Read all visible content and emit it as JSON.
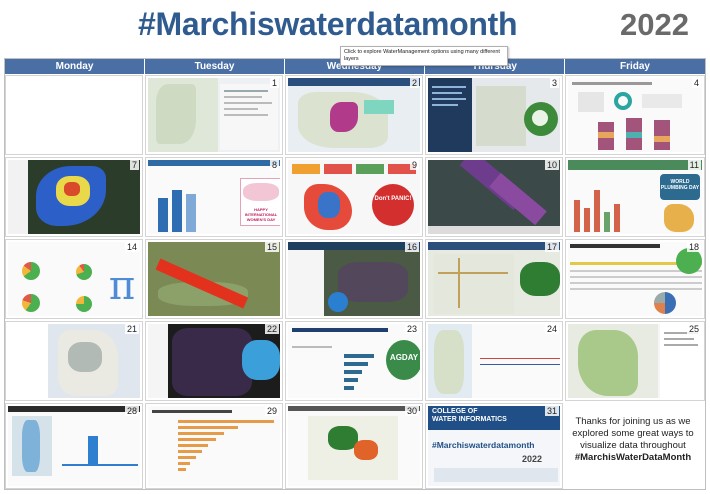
{
  "header": {
    "title": "#Marchiswaterdatamonth",
    "year": "2022"
  },
  "days": [
    "Monday",
    "Tuesday",
    "Wednesday",
    "Thursday",
    "Friday"
  ],
  "tooltip": "Click to explore WaterManagement options using many different layers",
  "cells": [
    {
      "num": "1"
    },
    {
      "num": "2"
    },
    {
      "num": "3"
    },
    {
      "num": "4"
    },
    {
      "num": "7"
    },
    {
      "num": "8"
    },
    {
      "num": "9"
    },
    {
      "num": "10"
    },
    {
      "num": "11"
    },
    {
      "num": "14"
    },
    {
      "num": "15"
    },
    {
      "num": "16"
    },
    {
      "num": "17"
    },
    {
      "num": "18"
    },
    {
      "num": "21"
    },
    {
      "num": "22"
    },
    {
      "num": "23"
    },
    {
      "num": "24"
    },
    {
      "num": "25"
    },
    {
      "num": "28"
    },
    {
      "num": "29"
    },
    {
      "num": "30"
    },
    {
      "num": "31"
    }
  ],
  "badges": {
    "pi": "π",
    "womens_day_top": "HAPPY",
    "womens_day_main": "INTERNATIONAL WOMEN'S DAY",
    "dont_panic": "Don't PANIC!",
    "plumbing": "WORLD PLUMBING DAY",
    "agday": "AGDAY",
    "college_line1": "COLLEGE OF",
    "college_line2": "WATER INFORMATICS",
    "cell31_hashtag": "#Marchiswaterdatamonth",
    "cell31_year": "2022"
  },
  "closing": {
    "line1": "Thanks for joining us as we explored some great ways to visualize data throughout",
    "hashtag": "#MarchisWaterDataMonth"
  },
  "colors": {
    "header_blue": "#2f5b8f",
    "day_bar": "#4a6fa5",
    "year_gray": "#6a6a6a"
  }
}
